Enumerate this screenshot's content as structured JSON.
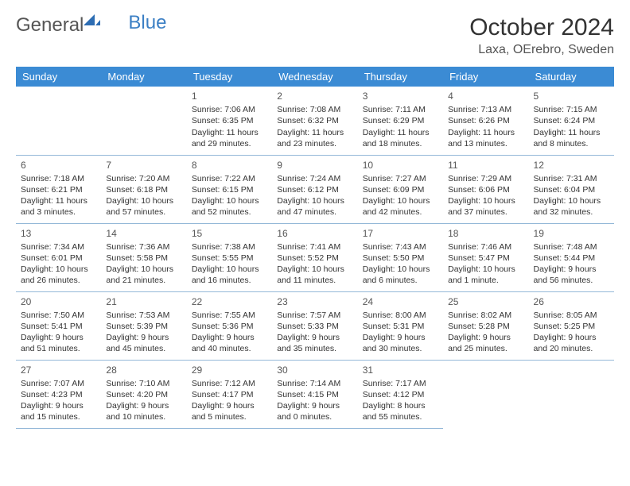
{
  "logo": {
    "text_main": "General",
    "text_accent": "Blue"
  },
  "title": "October 2024",
  "location": "Laxa, OErebro, Sweden",
  "colors": {
    "header_bg": "#3b8bd4",
    "header_text": "#ffffff",
    "cell_border": "#94b8d8",
    "text": "#333333",
    "accent": "#3b7fc4"
  },
  "weekdays": [
    "Sunday",
    "Monday",
    "Tuesday",
    "Wednesday",
    "Thursday",
    "Friday",
    "Saturday"
  ],
  "grid": [
    [
      null,
      null,
      {
        "n": "1",
        "sr": "7:06 AM",
        "ss": "6:35 PM",
        "dl": "11 hours and 29 minutes."
      },
      {
        "n": "2",
        "sr": "7:08 AM",
        "ss": "6:32 PM",
        "dl": "11 hours and 23 minutes."
      },
      {
        "n": "3",
        "sr": "7:11 AM",
        "ss": "6:29 PM",
        "dl": "11 hours and 18 minutes."
      },
      {
        "n": "4",
        "sr": "7:13 AM",
        "ss": "6:26 PM",
        "dl": "11 hours and 13 minutes."
      },
      {
        "n": "5",
        "sr": "7:15 AM",
        "ss": "6:24 PM",
        "dl": "11 hours and 8 minutes."
      }
    ],
    [
      {
        "n": "6",
        "sr": "7:18 AM",
        "ss": "6:21 PM",
        "dl": "11 hours and 3 minutes."
      },
      {
        "n": "7",
        "sr": "7:20 AM",
        "ss": "6:18 PM",
        "dl": "10 hours and 57 minutes."
      },
      {
        "n": "8",
        "sr": "7:22 AM",
        "ss": "6:15 PM",
        "dl": "10 hours and 52 minutes."
      },
      {
        "n": "9",
        "sr": "7:24 AM",
        "ss": "6:12 PM",
        "dl": "10 hours and 47 minutes."
      },
      {
        "n": "10",
        "sr": "7:27 AM",
        "ss": "6:09 PM",
        "dl": "10 hours and 42 minutes."
      },
      {
        "n": "11",
        "sr": "7:29 AM",
        "ss": "6:06 PM",
        "dl": "10 hours and 37 minutes."
      },
      {
        "n": "12",
        "sr": "7:31 AM",
        "ss": "6:04 PM",
        "dl": "10 hours and 32 minutes."
      }
    ],
    [
      {
        "n": "13",
        "sr": "7:34 AM",
        "ss": "6:01 PM",
        "dl": "10 hours and 26 minutes."
      },
      {
        "n": "14",
        "sr": "7:36 AM",
        "ss": "5:58 PM",
        "dl": "10 hours and 21 minutes."
      },
      {
        "n": "15",
        "sr": "7:38 AM",
        "ss": "5:55 PM",
        "dl": "10 hours and 16 minutes."
      },
      {
        "n": "16",
        "sr": "7:41 AM",
        "ss": "5:52 PM",
        "dl": "10 hours and 11 minutes."
      },
      {
        "n": "17",
        "sr": "7:43 AM",
        "ss": "5:50 PM",
        "dl": "10 hours and 6 minutes."
      },
      {
        "n": "18",
        "sr": "7:46 AM",
        "ss": "5:47 PM",
        "dl": "10 hours and 1 minute."
      },
      {
        "n": "19",
        "sr": "7:48 AM",
        "ss": "5:44 PM",
        "dl": "9 hours and 56 minutes."
      }
    ],
    [
      {
        "n": "20",
        "sr": "7:50 AM",
        "ss": "5:41 PM",
        "dl": "9 hours and 51 minutes."
      },
      {
        "n": "21",
        "sr": "7:53 AM",
        "ss": "5:39 PM",
        "dl": "9 hours and 45 minutes."
      },
      {
        "n": "22",
        "sr": "7:55 AM",
        "ss": "5:36 PM",
        "dl": "9 hours and 40 minutes."
      },
      {
        "n": "23",
        "sr": "7:57 AM",
        "ss": "5:33 PM",
        "dl": "9 hours and 35 minutes."
      },
      {
        "n": "24",
        "sr": "8:00 AM",
        "ss": "5:31 PM",
        "dl": "9 hours and 30 minutes."
      },
      {
        "n": "25",
        "sr": "8:02 AM",
        "ss": "5:28 PM",
        "dl": "9 hours and 25 minutes."
      },
      {
        "n": "26",
        "sr": "8:05 AM",
        "ss": "5:25 PM",
        "dl": "9 hours and 20 minutes."
      }
    ],
    [
      {
        "n": "27",
        "sr": "7:07 AM",
        "ss": "4:23 PM",
        "dl": "9 hours and 15 minutes."
      },
      {
        "n": "28",
        "sr": "7:10 AM",
        "ss": "4:20 PM",
        "dl": "9 hours and 10 minutes."
      },
      {
        "n": "29",
        "sr": "7:12 AM",
        "ss": "4:17 PM",
        "dl": "9 hours and 5 minutes."
      },
      {
        "n": "30",
        "sr": "7:14 AM",
        "ss": "4:15 PM",
        "dl": "9 hours and 0 minutes."
      },
      {
        "n": "31",
        "sr": "7:17 AM",
        "ss": "4:12 PM",
        "dl": "8 hours and 55 minutes."
      },
      null,
      null
    ]
  ]
}
